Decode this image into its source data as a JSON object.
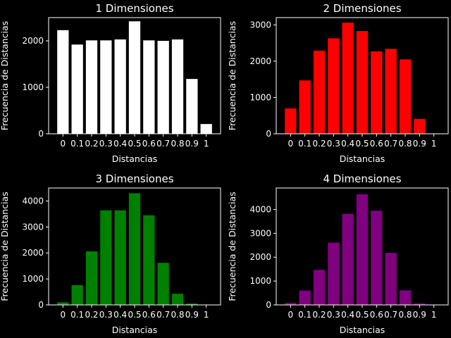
{
  "chart_data": [
    {
      "type": "bar",
      "title": "1 Dimensiones",
      "xlabel": "Distancias",
      "ylabel": "Frecuencia de Distancias",
      "color": "#ffffff",
      "categories": [
        "0",
        "0.1",
        "0.2",
        "0.3",
        "0.4",
        "0.5",
        "0.6",
        "0.7",
        "0.8",
        "0.9",
        "1"
      ],
      "values": [
        2230,
        1920,
        2010,
        2010,
        2030,
        2420,
        2010,
        2000,
        2030,
        1180,
        210
      ],
      "ylim": [
        0,
        2500
      ],
      "yticks": [
        0,
        1000,
        2000
      ]
    },
    {
      "type": "bar",
      "title": "2 Dimensiones",
      "xlabel": "Distancias",
      "ylabel": "Frecuencia de Distancias",
      "color": "#ff0000",
      "categories": [
        "0",
        "0.1",
        "0.2",
        "0.3",
        "0.4",
        "0.5",
        "0.6",
        "0.7",
        "0.8",
        "0.9",
        "1"
      ],
      "values": [
        700,
        1470,
        2290,
        2630,
        3060,
        2830,
        2270,
        2340,
        2050,
        410,
        0
      ],
      "ylim": [
        0,
        3200
      ],
      "yticks": [
        0,
        1000,
        2000,
        3000
      ]
    },
    {
      "type": "bar",
      "title": "3 Dimensiones",
      "xlabel": "Distancias",
      "ylabel": "Frecuencia de Distancias",
      "color": "#008000",
      "categories": [
        "0",
        "0.1",
        "0.2",
        "0.3",
        "0.4",
        "0.5",
        "0.6",
        "0.7",
        "0.8",
        "0.9",
        "1"
      ],
      "values": [
        100,
        760,
        2060,
        3640,
        3640,
        4300,
        3450,
        1620,
        430,
        50,
        0
      ],
      "ylim": [
        0,
        4500
      ],
      "yticks": [
        0,
        1000,
        2000,
        3000,
        4000
      ]
    },
    {
      "type": "bar",
      "title": "4 Dimensiones",
      "xlabel": "Distancias",
      "ylabel": "Frecuencia de Distancias",
      "color": "#800080",
      "categories": [
        "0",
        "0.1",
        "0.2",
        "0.3",
        "0.4",
        "0.5",
        "0.6",
        "0.7",
        "0.8",
        "0.9",
        "1"
      ],
      "values": [
        80,
        600,
        1470,
        2610,
        3820,
        4640,
        3950,
        2180,
        610,
        60,
        0
      ],
      "ylim": [
        0,
        4900
      ],
      "yticks": [
        0,
        1000,
        2000,
        3000,
        4000
      ]
    }
  ]
}
